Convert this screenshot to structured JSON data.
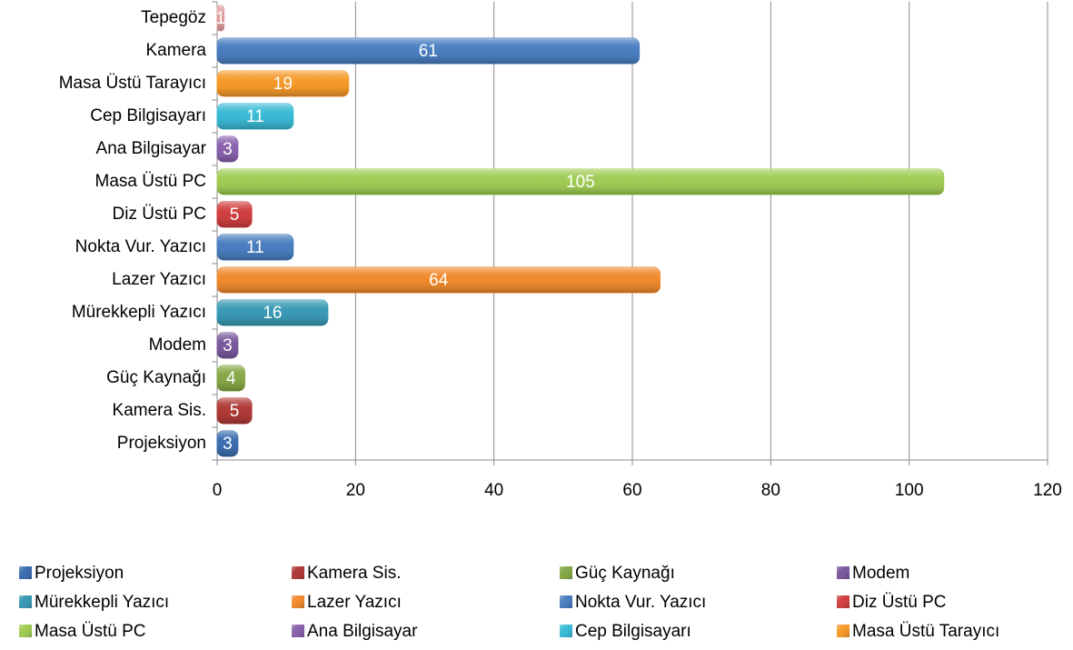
{
  "chart_data": {
    "type": "bar",
    "orientation": "horizontal",
    "categories": [
      "Projeksiyon",
      "Kamera Sis.",
      "Güç Kaynağı",
      "Modem",
      "Mürekkepli Yazıcı",
      "Lazer Yazıcı",
      "Nokta Vur. Yazıcı",
      "Diz Üstü PC",
      "Masa Üstü PC",
      "Ana Bilgisayar",
      "Cep Bilgisayarı",
      "Masa Üstü Tarayıcı",
      "Kamera",
      "Tepegöz"
    ],
    "values": [
      3,
      5,
      4,
      3,
      16,
      64,
      11,
      5,
      105,
      3,
      11,
      19,
      61,
      1
    ],
    "colors": [
      "#3d6eb0",
      "#b03b38",
      "#86a847",
      "#7a5a9e",
      "#3a9ab5",
      "#f08a2e",
      "#4a7ec0",
      "#d04040",
      "#a0cc55",
      "#8a62ad",
      "#3bbad5",
      "#f59a2a",
      "#4a7ec0",
      "#e0a09d"
    ],
    "xlim": [
      0,
      120
    ],
    "xticks": [
      0,
      20,
      40,
      60,
      80,
      100,
      120
    ],
    "grid": true,
    "legend": [
      {
        "name": "Projeksiyon",
        "color": "#3d6eb0"
      },
      {
        "name": "Kamera Sis.",
        "color": "#b03b38"
      },
      {
        "name": "Güç Kaynağı",
        "color": "#86a847"
      },
      {
        "name": "Modem",
        "color": "#7a5a9e"
      },
      {
        "name": "Mürekkepli Yazıcı",
        "color": "#3a9ab5"
      },
      {
        "name": "Lazer Yazıcı",
        "color": "#f08a2e"
      },
      {
        "name": "Nokta Vur. Yazıcı",
        "color": "#4a7ec0"
      },
      {
        "name": "Diz Üstü PC",
        "color": "#d04040"
      },
      {
        "name": "Masa Üstü PC",
        "color": "#a0cc55"
      },
      {
        "name": "Ana Bilgisayar",
        "color": "#8a62ad"
      },
      {
        "name": "Cep Bilgisayarı",
        "color": "#3bbad5"
      },
      {
        "name": "Masa Üstü Tarayıcı",
        "color": "#f59a2a"
      }
    ]
  }
}
